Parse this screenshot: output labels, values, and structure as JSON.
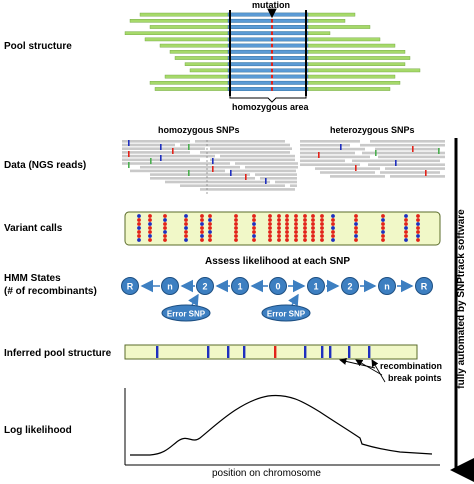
{
  "labels": {
    "pool_structure": "Pool structure",
    "data_reads_line1": "Data (NGS reads)",
    "variant_calls": "Variant calls",
    "hmm_line1": "HMM States",
    "hmm_line2": "(# of recombinants)",
    "inferred": "Inferred pool structure",
    "loglik": "Log likelihood"
  },
  "annotations": {
    "mutation": "mutation",
    "homozygous_area": "homozygous area",
    "homozygous_snps": "homozygous SNPs",
    "heterozygous_snps": "heterozygous SNPs",
    "assess": "Assess likelihood at each SNP",
    "recomb_line1": "recombination",
    "recomb_line2": "break points",
    "x_axis": "position on chromosome",
    "side_arrow": "fully automated by SNPtrack software"
  },
  "hmm": {
    "states": [
      "R",
      "n",
      "2",
      "1",
      "0",
      "1",
      "2",
      "n",
      "R"
    ],
    "error_label": "Error SNP"
  },
  "colors": {
    "green_read": "#a6d96a",
    "blue_read": "#5b9bd5",
    "red": "#e2231a",
    "blue": "#1f2fbf",
    "state_fill": "#3d7fc1",
    "yellow_bar": "#f1f8c8",
    "gray_read": "#c9c9c9"
  }
}
